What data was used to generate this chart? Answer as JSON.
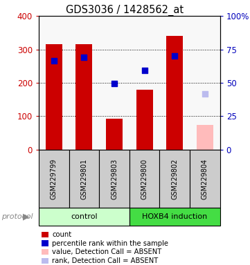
{
  "title": "GDS3036 / 1428562_at",
  "samples": [
    "GSM229799",
    "GSM229801",
    "GSM229803",
    "GSM229800",
    "GSM229802",
    "GSM229804"
  ],
  "bar_values": [
    316,
    316,
    93,
    180,
    340,
    75
  ],
  "bar_colors": [
    "#cc0000",
    "#cc0000",
    "#cc0000",
    "#cc0000",
    "#cc0000",
    "#ffbbbb"
  ],
  "dot_values_left": [
    265,
    277,
    197,
    238,
    280,
    168
  ],
  "dot_colors": [
    "#0000cc",
    "#0000cc",
    "#0000cc",
    "#0000cc",
    "#0000cc",
    "#bbbbee"
  ],
  "ylim_left": [
    0,
    400
  ],
  "ylim_right": [
    0,
    100
  ],
  "yticks_left": [
    0,
    100,
    200,
    300,
    400
  ],
  "yticks_right": [
    0,
    25,
    50,
    75,
    100
  ],
  "ytick_labels_right": [
    "0",
    "25",
    "50",
    "75",
    "100%"
  ],
  "groups": [
    {
      "label": "control",
      "indices": [
        0,
        1,
        2
      ],
      "color": "#ccffcc"
    },
    {
      "label": "HOXB4 induction",
      "indices": [
        3,
        4,
        5
      ],
      "color": "#44dd44"
    }
  ],
  "protocol_label": "protocol",
  "legend_items": [
    {
      "color": "#cc0000",
      "label": "count"
    },
    {
      "color": "#0000cc",
      "label": "percentile rank within the sample"
    },
    {
      "color": "#ffbbbb",
      "label": "value, Detection Call = ABSENT"
    },
    {
      "color": "#bbbbee",
      "label": "rank, Detection Call = ABSENT"
    }
  ],
  "left_axis_color": "#cc0000",
  "right_axis_color": "#0000bb",
  "bar_width": 0.55,
  "dot_size": 40,
  "plot_bg": "#f8f8f8"
}
